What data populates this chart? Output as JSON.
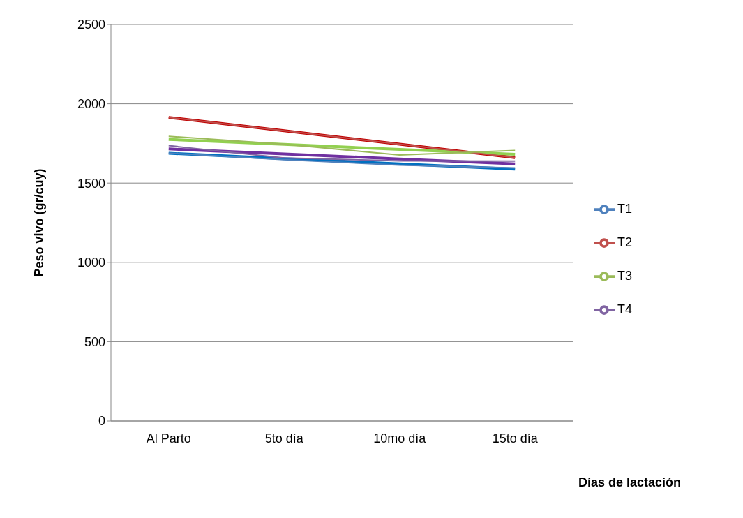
{
  "chart_data": {
    "type": "line",
    "xlabel": "Días de lactación",
    "ylabel": "Peso vivo (gr/cuy)",
    "categories": [
      "Al Parto",
      "5to día",
      "10mo día",
      "15to día"
    ],
    "series": [
      {
        "name": "T1",
        "color": "#4f81bd",
        "values": [
          1689,
          1647,
          1613,
          1596
        ]
      },
      {
        "name": "T2",
        "color": "#c0504d",
        "values": [
          1914,
          1830,
          1745,
          1660
        ]
      },
      {
        "name": "T3",
        "color": "#9bbb59",
        "values": [
          1795,
          1745,
          1677,
          1706
        ]
      },
      {
        "name": "T4",
        "color": "#8064a2",
        "values": [
          1736,
          1658,
          1640,
          1638
        ]
      },
      {
        "type": "line",
        "color": "#0070c0",
        "values": [
          1688,
          1654,
          1621,
          1588
        ]
      },
      {
        "type": "line",
        "color": "#c00000",
        "values": [
          1914,
          1830,
          1745,
          1660
        ]
      },
      {
        "type": "line",
        "color": "#92d050",
        "values": [
          1775,
          1744,
          1712,
          1681
        ]
      },
      {
        "type": "line",
        "color": "#7030a0",
        "values": [
          1715,
          1684,
          1652,
          1621
        ]
      }
    ],
    "ylim": [
      0,
      2500
    ],
    "yticks": [
      0,
      500,
      1000,
      1500,
      2000,
      2500
    ],
    "grid": "y",
    "legend": "right",
    "marker": "none",
    "line_style": "solid"
  }
}
